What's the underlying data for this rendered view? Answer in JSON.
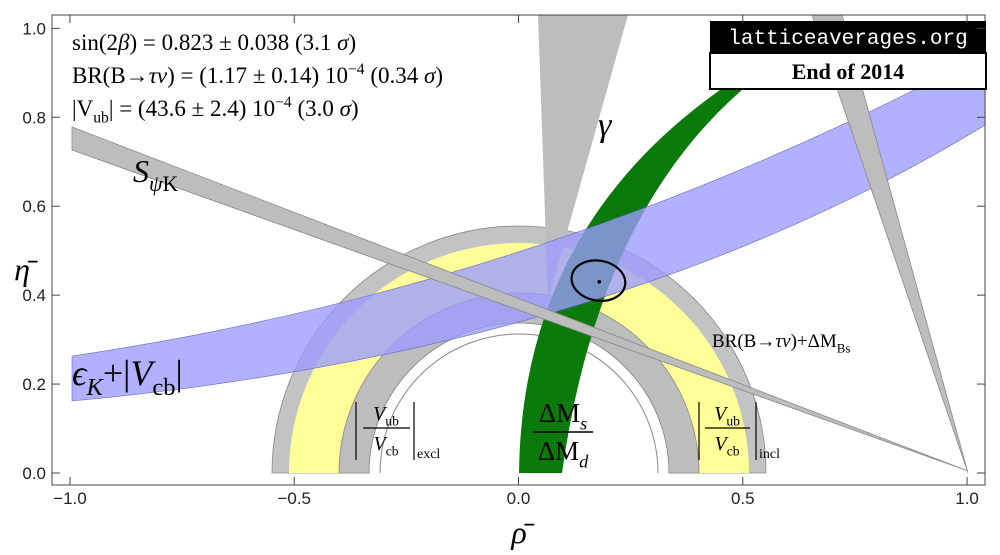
{
  "chart_data": {
    "type": "ckm",
    "x_label": "ρ̄",
    "y_label": "η̄",
    "xlim": [
      -1.04,
      1.04
    ],
    "ylim": [
      -0.027,
      1.03
    ],
    "xticks": [
      {
        "value": -1.0,
        "label": "−1.0"
      },
      {
        "value": -0.5,
        "label": "−0.5"
      },
      {
        "value": 0,
        "label": "0.0"
      },
      {
        "value": 0.5,
        "label": "0.5"
      },
      {
        "value": 1,
        "label": "1.0"
      }
    ],
    "yticks": [
      {
        "value": 0,
        "label": "0.0"
      },
      0.2,
      0.4,
      0.6,
      0.8,
      {
        "value": 1,
        "label": "1.0"
      }
    ],
    "fit_point": {
      "x": 0.18,
      "y": 0.43
    },
    "annotations": [
      [
        {
          "text": "sin(2"
        },
        {
          "text": "β",
          "style": "italic"
        },
        {
          "text": ") = 0.823 ± 0.038 (3.1 "
        },
        {
          "text": "σ",
          "style": "italic"
        },
        {
          "text": ")"
        }
      ],
      [
        {
          "text": "BR(B→"
        },
        {
          "text": "τν",
          "style": "italic"
        },
        {
          "text": ") = (1.17 ± 0.14) 10"
        },
        {
          "text": "−4",
          "style": "sup"
        },
        {
          "text": " (0.34 "
        },
        {
          "text": "σ",
          "style": "italic"
        },
        {
          "text": ")"
        }
      ],
      [
        {
          "text": "|V"
        },
        {
          "text": "ub",
          "style": "sub"
        },
        {
          "text": "| = (43.6 ± 2.4) 10"
        },
        {
          "text": "−4",
          "style": "sup"
        },
        {
          "text": " (3.0 "
        },
        {
          "text": "σ",
          "style": "italic"
        },
        {
          "text": ")"
        }
      ]
    ],
    "logo": {
      "site": "latticeaverages.org",
      "edition": "End of 2014"
    },
    "band_labels": {
      "s_psi_k": [
        {
          "text": "S",
          "style": "italic"
        },
        {
          "text": "ψ",
          "style": "sub italic"
        },
        {
          "text": "K",
          "style": "sub"
        }
      ],
      "gamma": [
        {
          "text": "γ",
          "style": "italic"
        }
      ],
      "eps_vcb": [
        {
          "text": "ϵ",
          "style": "italic"
        },
        {
          "text": "K",
          "style": "sub italic"
        },
        {
          "text": "+|"
        },
        {
          "text": "V",
          "style": "italic"
        },
        {
          "text": "cb",
          "style": "sub"
        },
        {
          "text": "|"
        }
      ],
      "br_dm": [
        {
          "text": "BR(B→"
        },
        {
          "text": "τν",
          "style": "italic"
        },
        {
          "text": ")+ΔM"
        },
        {
          "text": "Bs",
          "style": "sub"
        }
      ],
      "dm": {
        "numerator": [
          {
            "text": "ΔM"
          },
          {
            "text": "s",
            "style": "sub italic"
          }
        ],
        "denominator": [
          {
            "text": "ΔM"
          },
          {
            "text": "d",
            "style": "sub italic"
          }
        ]
      },
      "excl": {
        "numerator": [
          {
            "text": "V",
            "style": "italic"
          },
          {
            "text": "ub",
            "style": "sub"
          }
        ],
        "denominator": [
          {
            "text": "V",
            "style": "italic"
          },
          {
            "text": "cb",
            "style": "sub"
          }
        ],
        "subscript": "excl"
      },
      "incl": {
        "numerator": [
          {
            "text": "V",
            "style": "italic"
          },
          {
            "text": "ub",
            "style": "sub"
          }
        ],
        "denominator": [
          {
            "text": "V",
            "style": "italic"
          },
          {
            "text": "cb",
            "style": "sub"
          }
        ],
        "subscript": "incl"
      }
    }
  }
}
